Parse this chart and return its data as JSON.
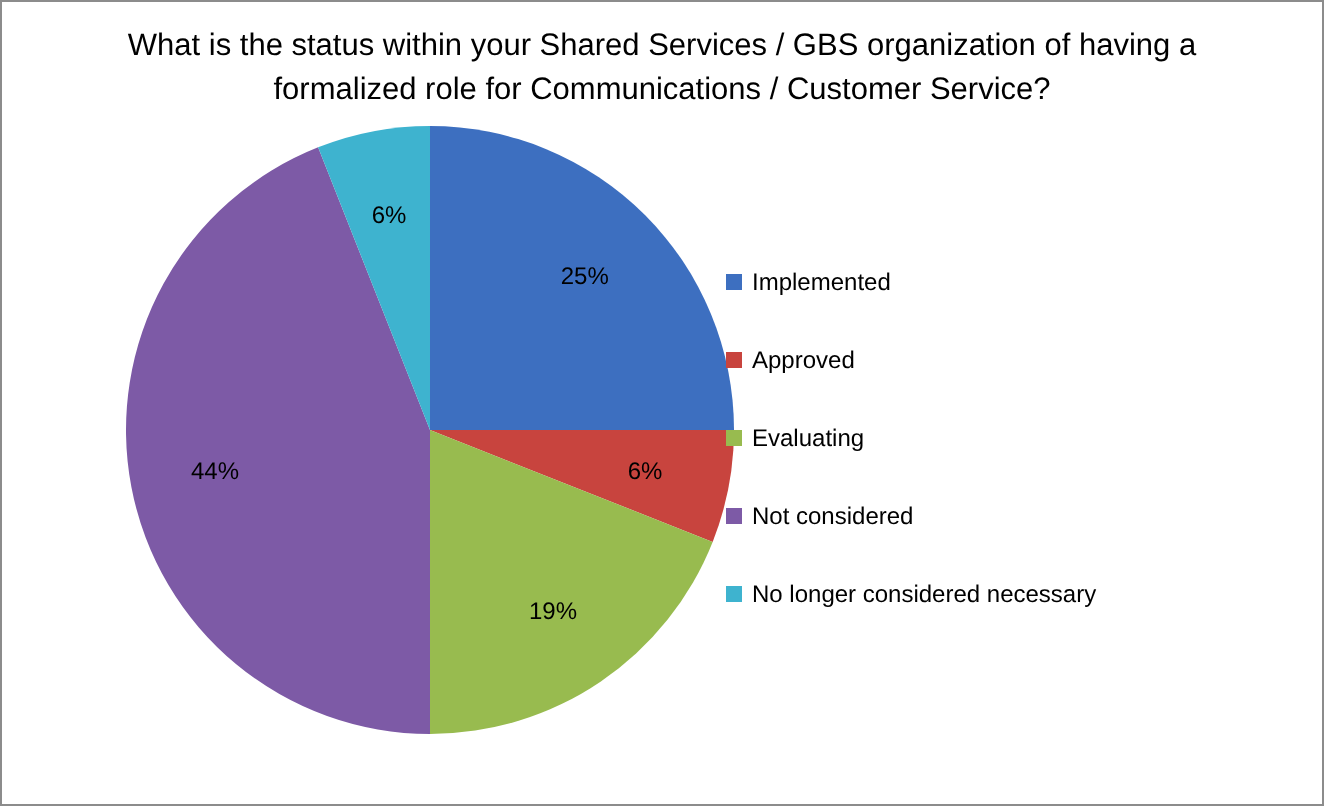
{
  "chart_data": {
    "type": "pie",
    "title": "What is the status within your Shared Services / GBS organization of having a formalized role for Communications / Customer Service?",
    "categories": [
      "Implemented",
      "Approved",
      "Evaluating",
      "Not considered",
      "No longer considered necessary"
    ],
    "values": [
      25,
      6,
      19,
      44,
      6
    ],
    "value_labels": [
      "25%",
      "6%",
      "19%",
      "44%",
      "6%"
    ],
    "colors": [
      "#3d6fc0",
      "#c8443e",
      "#98bb4f",
      "#7d5aa6",
      "#3eb3cf"
    ],
    "legend": "right"
  }
}
